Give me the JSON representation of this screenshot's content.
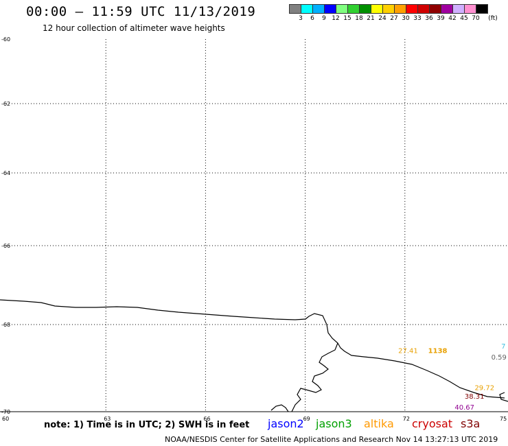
{
  "header": {
    "title": "00:00 – 11:59 UTC 11/13/2019",
    "subtitle": "12 hour collection of altimeter wave heights"
  },
  "colorbar": {
    "colors": [
      "#808080",
      "#00ffff",
      "#00b0ff",
      "#0000ff",
      "#80ff80",
      "#30d030",
      "#009000",
      "#ffff00",
      "#ffd000",
      "#ffa000",
      "#ff0000",
      "#d00000",
      "#900000",
      "#a000a0",
      "#d0b0ff",
      "#ff90d0",
      "#000000"
    ],
    "labels": [
      "3",
      "6",
      "9",
      "12",
      "15",
      "18",
      "21",
      "24",
      "27",
      "30",
      "33",
      "36",
      "39",
      "42",
      "45",
      "70"
    ],
    "unit": "(ft)"
  },
  "axes": {
    "lat_labels": [
      "-60",
      "-62",
      "-64",
      "-66",
      "-68",
      "-70"
    ],
    "lon_labels": [
      "60",
      "63",
      "66",
      "69",
      "72",
      "75"
    ]
  },
  "observations": [
    {
      "value": "27.41",
      "color": "#e8a000",
      "lon": 71.8,
      "lat": -68.65
    },
    {
      "value": "1138",
      "color": "#e8a000",
      "lon": 72.7,
      "lat": -68.65
    },
    {
      "value": "29.72",
      "color": "#e8a000",
      "lon": 74.1,
      "lat": -69.5
    },
    {
      "value": "38.31",
      "color": "#800000",
      "lon": 73.8,
      "lat": -69.7
    },
    {
      "value": "40.67",
      "color": "#900090",
      "lon": 73.5,
      "lat": -69.95
    },
    {
      "value": "7",
      "color": "#40c0e0",
      "lon": 74.9,
      "lat": -68.55
    },
    {
      "value": "0.59",
      "color": "#606060",
      "lon": 74.6,
      "lat": -68.8
    }
  ],
  "footer": {
    "note": "note: 1) Time is in UTC; 2) SWH is in feet",
    "satellites": [
      {
        "name": "jason2",
        "color": "#0000ff"
      },
      {
        "name": "jason3",
        "color": "#00a000"
      },
      {
        "name": "altika",
        "color": "#ff9900"
      },
      {
        "name": "cryosat",
        "color": "#cc0000"
      },
      {
        "name": "s3a",
        "color": "#800000"
      }
    ],
    "credit": "NOAA/NESDIS Center for Satellite Applications and Research    Nov 14 13:27:13 UTC 2019"
  }
}
